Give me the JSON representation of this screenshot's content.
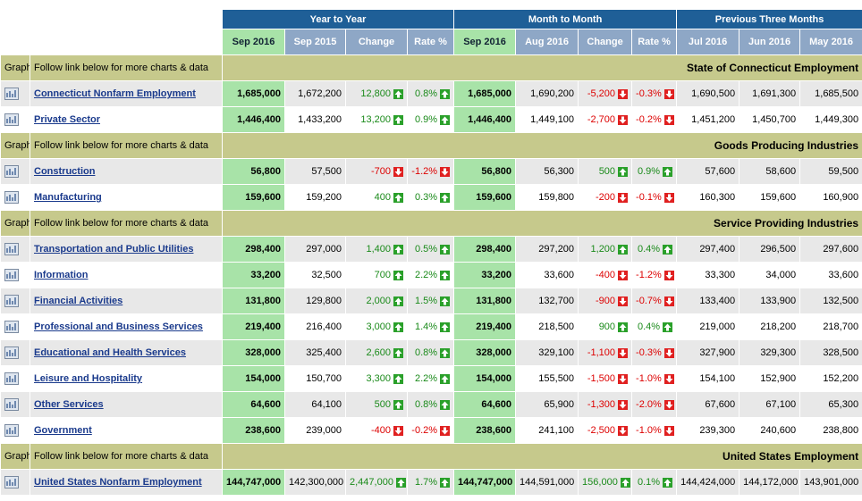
{
  "header": {
    "groups": [
      "Year to Year",
      "Month to Month",
      "Previous Three Months"
    ],
    "columns": [
      "Sep 2016",
      "Sep 2015",
      "Change",
      "Rate %",
      "Sep 2016",
      "Aug 2016",
      "Change",
      "Rate %",
      "Jul 2016",
      "Jun 2016",
      "May 2016"
    ]
  },
  "sections": [
    {
      "graph": "Graph",
      "note": "Follow link below for more charts & data",
      "title": "State of Connecticut Employment",
      "rows": [
        {
          "name": "Connecticut Nonfarm Employment",
          "cells": [
            "1,685,000",
            "1,672,200",
            "12,800",
            "0.8%",
            "1,685,000",
            "1,690,200",
            "-5,200",
            "-0.3%",
            "1,690,500",
            "1,691,300",
            "1,685,500"
          ]
        },
        {
          "name": "Private Sector",
          "cells": [
            "1,446,400",
            "1,433,200",
            "13,200",
            "0.9%",
            "1,446,400",
            "1,449,100",
            "-2,700",
            "-0.2%",
            "1,451,200",
            "1,450,700",
            "1,449,300"
          ]
        }
      ]
    },
    {
      "graph": "Graph",
      "note": "Follow link below for more charts & data",
      "title": "Goods Producing Industries",
      "rows": [
        {
          "name": "Construction",
          "cells": [
            "56,800",
            "57,500",
            "-700",
            "-1.2%",
            "56,800",
            "56,300",
            "500",
            "0.9%",
            "57,600",
            "58,600",
            "59,500"
          ]
        },
        {
          "name": "Manufacturing",
          "cells": [
            "159,600",
            "159,200",
            "400",
            "0.3%",
            "159,600",
            "159,800",
            "-200",
            "-0.1%",
            "160,300",
            "159,600",
            "160,900"
          ]
        }
      ]
    },
    {
      "graph": "Graph",
      "note": "Follow link below for more charts & data",
      "title": "Service Providing Industries",
      "rows": [
        {
          "name": "Transportation and Public Utilities",
          "cells": [
            "298,400",
            "297,000",
            "1,400",
            "0.5%",
            "298,400",
            "297,200",
            "1,200",
            "0.4%",
            "297,400",
            "296,500",
            "297,600"
          ]
        },
        {
          "name": "Information",
          "cells": [
            "33,200",
            "32,500",
            "700",
            "2.2%",
            "33,200",
            "33,600",
            "-400",
            "-1.2%",
            "33,300",
            "34,000",
            "33,600"
          ]
        },
        {
          "name": "Financial Activities",
          "cells": [
            "131,800",
            "129,800",
            "2,000",
            "1.5%",
            "131,800",
            "132,700",
            "-900",
            "-0.7%",
            "133,400",
            "133,900",
            "132,500"
          ]
        },
        {
          "name": "Professional and Business Services",
          "cells": [
            "219,400",
            "216,400",
            "3,000",
            "1.4%",
            "219,400",
            "218,500",
            "900",
            "0.4%",
            "219,000",
            "218,200",
            "218,700"
          ]
        },
        {
          "name": "Educational and Health Services",
          "cells": [
            "328,000",
            "325,400",
            "2,600",
            "0.8%",
            "328,000",
            "329,100",
            "-1,100",
            "-0.3%",
            "327,900",
            "329,300",
            "328,500"
          ]
        },
        {
          "name": "Leisure and Hospitality",
          "cells": [
            "154,000",
            "150,700",
            "3,300",
            "2.2%",
            "154,000",
            "155,500",
            "-1,500",
            "-1.0%",
            "154,100",
            "152,900",
            "152,200"
          ]
        },
        {
          "name": "Other Services",
          "cells": [
            "64,600",
            "64,100",
            "500",
            "0.8%",
            "64,600",
            "65,900",
            "-1,300",
            "-2.0%",
            "67,600",
            "67,100",
            "65,300"
          ]
        },
        {
          "name": "Government",
          "cells": [
            "238,600",
            "239,000",
            "-400",
            "-0.2%",
            "238,600",
            "241,100",
            "-2,500",
            "-1.0%",
            "239,300",
            "240,600",
            "238,800"
          ]
        }
      ]
    },
    {
      "graph": "Graph",
      "note": "Follow link below for more charts & data",
      "title": "United States Employment",
      "rows": [
        {
          "name": "United States Nonfarm Employment",
          "cells": [
            "144,747,000",
            "142,300,000",
            "2,447,000",
            "1.7%",
            "144,747,000",
            "144,591,000",
            "156,000",
            "0.1%",
            "144,424,000",
            "144,172,000",
            "143,901,000"
          ]
        }
      ]
    }
  ]
}
